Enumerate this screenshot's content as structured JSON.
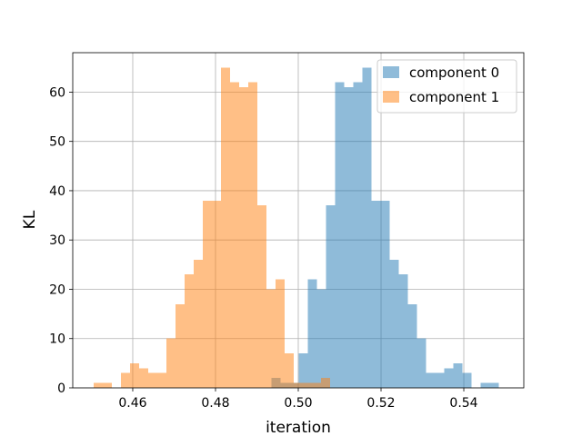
{
  "chart_data": {
    "type": "histogram",
    "title": "",
    "xlabel": "iteration",
    "ylabel": "KL",
    "xlim": [
      0.4455,
      0.5545
    ],
    "ylim": [
      0,
      68
    ],
    "xticks": [
      0.46,
      0.48,
      0.5,
      0.52,
      0.54
    ],
    "xtick_labels": [
      "0.46",
      "0.48",
      "0.50",
      "0.52",
      "0.54"
    ],
    "yticks": [
      0,
      10,
      20,
      30,
      40,
      50,
      60
    ],
    "ytick_labels": [
      "0",
      "10",
      "20",
      "30",
      "40",
      "50",
      "60"
    ],
    "grid": true,
    "legend_position": "upper-right",
    "series": [
      {
        "name": "component 0",
        "color": "#1f77b4",
        "alpha": 0.5,
        "bins": [
          [
            0.4935,
            0.4957,
            2
          ],
          [
            0.4957,
            0.4979,
            1
          ],
          [
            0.4979,
            0.5001,
            1
          ],
          [
            0.5001,
            0.5023,
            7
          ],
          [
            0.5023,
            0.5045,
            22
          ],
          [
            0.5045,
            0.5067,
            20
          ],
          [
            0.5067,
            0.5089,
            37
          ],
          [
            0.5089,
            0.5111,
            62
          ],
          [
            0.5111,
            0.5133,
            61
          ],
          [
            0.5133,
            0.5155,
            62
          ],
          [
            0.5155,
            0.5177,
            65
          ],
          [
            0.5177,
            0.5199,
            38
          ],
          [
            0.5199,
            0.5221,
            38
          ],
          [
            0.5221,
            0.5243,
            26
          ],
          [
            0.5243,
            0.5265,
            23
          ],
          [
            0.5265,
            0.5287,
            17
          ],
          [
            0.5287,
            0.5309,
            10
          ],
          [
            0.5309,
            0.5331,
            3
          ],
          [
            0.5331,
            0.5353,
            3
          ],
          [
            0.5353,
            0.5375,
            4
          ],
          [
            0.5375,
            0.5397,
            5
          ],
          [
            0.5397,
            0.5419,
            3
          ],
          [
            0.5441,
            0.5463,
            1
          ],
          [
            0.5463,
            0.5485,
            1
          ]
        ]
      },
      {
        "name": "component 1",
        "color": "#ff7f0e",
        "alpha": 0.5,
        "bins": [
          [
            0.4505,
            0.4549,
            1
          ],
          [
            0.4571,
            0.4593,
            3
          ],
          [
            0.4593,
            0.4615,
            5
          ],
          [
            0.4615,
            0.4637,
            4
          ],
          [
            0.4637,
            0.4681,
            3
          ],
          [
            0.4681,
            0.4703,
            10
          ],
          [
            0.4703,
            0.4725,
            17
          ],
          [
            0.4725,
            0.4747,
            23
          ],
          [
            0.4747,
            0.4769,
            26
          ],
          [
            0.4769,
            0.4791,
            38
          ],
          [
            0.4791,
            0.4813,
            38
          ],
          [
            0.4813,
            0.4835,
            65
          ],
          [
            0.4835,
            0.4857,
            62
          ],
          [
            0.4857,
            0.4879,
            61
          ],
          [
            0.4879,
            0.4901,
            62
          ],
          [
            0.4901,
            0.4923,
            37
          ],
          [
            0.4923,
            0.4945,
            20
          ],
          [
            0.4945,
            0.4967,
            22
          ],
          [
            0.4967,
            0.4989,
            7
          ],
          [
            0.4989,
            0.5011,
            1
          ],
          [
            0.5011,
            0.5033,
            1
          ],
          [
            0.5033,
            0.5055,
            1
          ],
          [
            0.5055,
            0.5077,
            2
          ]
        ]
      }
    ]
  }
}
